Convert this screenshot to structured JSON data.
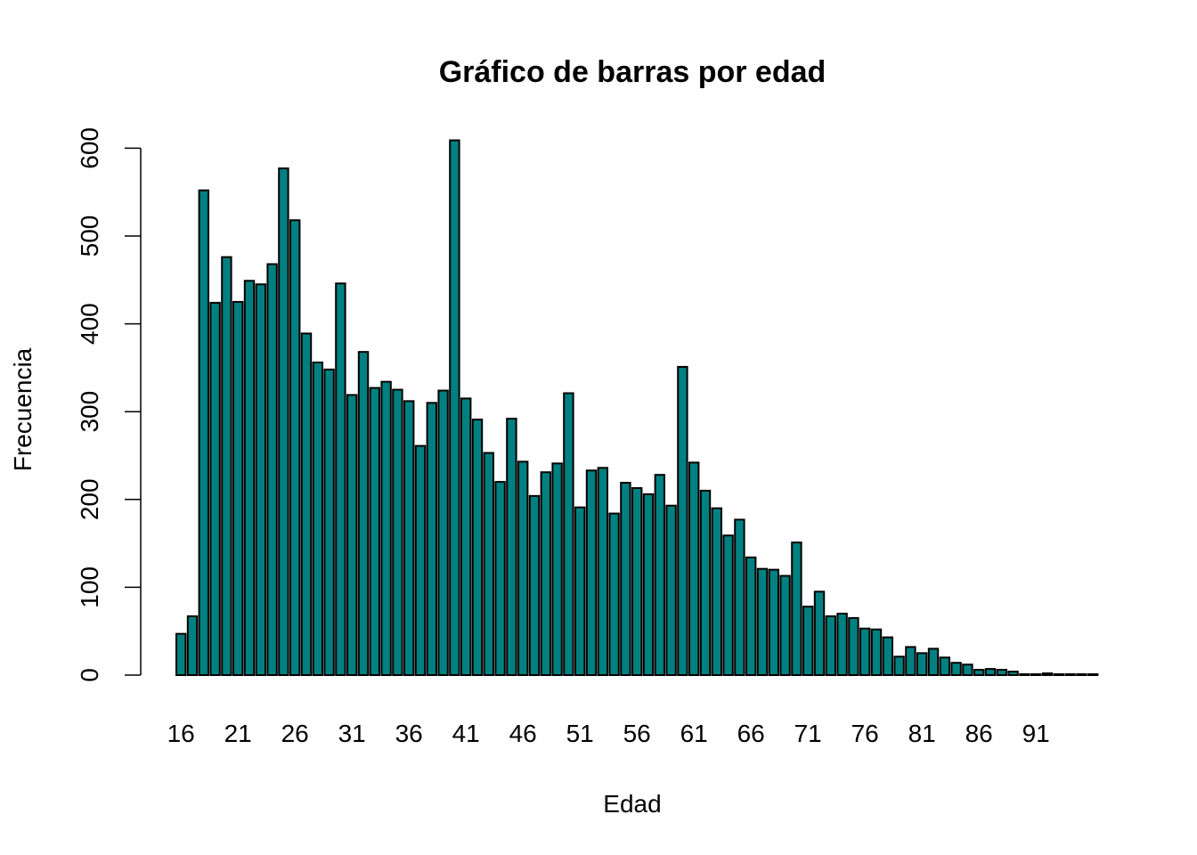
{
  "chart_data": {
    "type": "bar",
    "title": "Gráfico de barras por edad",
    "xlabel": "Edad",
    "ylabel": "Frecuencia",
    "ylim": [
      0,
      600
    ],
    "yticks": [
      0,
      100,
      200,
      300,
      400,
      500,
      600
    ],
    "xtick_labels": [
      "16",
      "21",
      "26",
      "31",
      "36",
      "41",
      "46",
      "51",
      "56",
      "61",
      "66",
      "71",
      "76",
      "81",
      "86",
      "91"
    ],
    "bar_color": "#008080",
    "categories": [
      16,
      17,
      18,
      19,
      20,
      21,
      22,
      23,
      24,
      25,
      26,
      27,
      28,
      29,
      30,
      31,
      32,
      33,
      34,
      35,
      36,
      37,
      38,
      39,
      40,
      41,
      42,
      43,
      44,
      45,
      46,
      47,
      48,
      49,
      50,
      51,
      52,
      53,
      54,
      55,
      56,
      57,
      58,
      59,
      60,
      61,
      62,
      63,
      64,
      65,
      66,
      67,
      68,
      69,
      70,
      71,
      72,
      73,
      74,
      75,
      76,
      77,
      78,
      79,
      80,
      81,
      82,
      83,
      84,
      85,
      86,
      87,
      88,
      89,
      90,
      91,
      92,
      93,
      94,
      95,
      96
    ],
    "values": [
      47,
      67,
      552,
      424,
      476,
      425,
      449,
      445,
      468,
      577,
      518,
      389,
      356,
      348,
      446,
      319,
      368,
      327,
      334,
      325,
      312,
      261,
      310,
      324,
      609,
      315,
      291,
      253,
      220,
      292,
      243,
      204,
      231,
      241,
      321,
      191,
      233,
      236,
      184,
      219,
      213,
      206,
      228,
      193,
      351,
      242,
      210,
      190,
      159,
      177,
      134,
      121,
      120,
      113,
      151,
      78,
      95,
      67,
      70,
      65,
      53,
      52,
      43,
      21,
      32,
      25,
      30,
      20,
      14,
      12,
      6,
      7,
      6,
      4,
      1,
      1,
      2,
      1,
      1,
      1,
      1
    ]
  }
}
